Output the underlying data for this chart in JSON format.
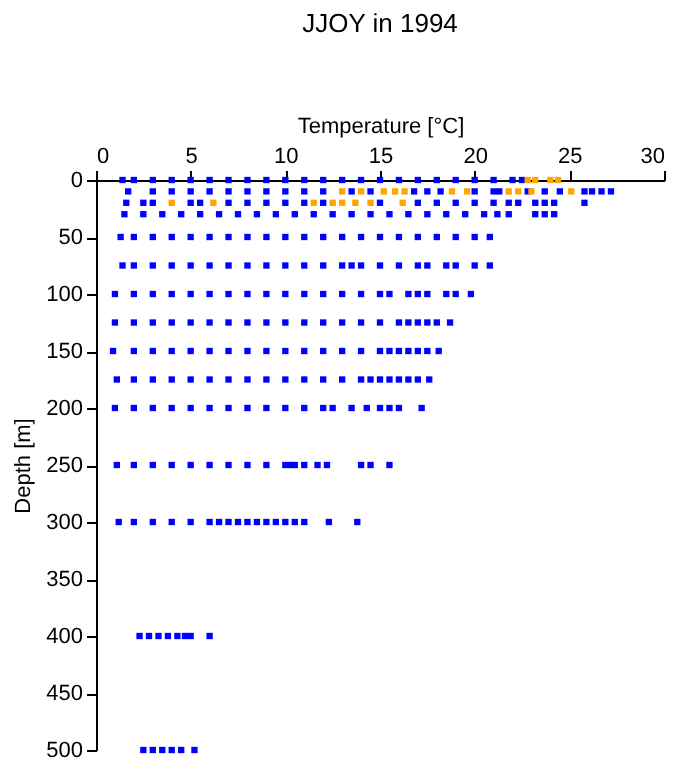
{
  "chart_data": {
    "type": "scatter",
    "title": "JJOY in 1994",
    "xlabel": "Temperature [°C]",
    "ylabel": "Depth [m]",
    "xlim": [
      0,
      30
    ],
    "xticks": [
      0,
      5,
      10,
      15,
      20,
      25,
      30
    ],
    "ylim": [
      500,
      0
    ],
    "yticks": [
      0,
      50,
      100,
      150,
      200,
      250,
      300,
      350,
      400,
      450,
      500
    ],
    "grid": false,
    "marker": "square",
    "series": [
      {
        "color": "#0000ff",
        "x": [
          1.4,
          2,
          3,
          4,
          5,
          6,
          7,
          8,
          9,
          10,
          11,
          12,
          13,
          14,
          15,
          16,
          17,
          18,
          19,
          20,
          21,
          22,
          22.5
        ],
        "values": [
          0,
          0,
          0,
          0,
          0,
          0,
          0,
          0,
          0,
          0,
          0,
          0,
          0,
          0,
          0,
          0,
          0,
          0,
          0,
          0,
          0,
          0,
          0
        ]
      },
      {
        "color": "#0000ff",
        "x": [
          1.7,
          3,
          4,
          5,
          6,
          7,
          8,
          9,
          10,
          11,
          12,
          13.5,
          14.5,
          16.8,
          17.5,
          18.2,
          20,
          21,
          21.3,
          22.8,
          23.7,
          24.5,
          25.8,
          26.2,
          26.7,
          27.2
        ],
        "values": [
          10,
          10,
          10,
          10,
          10,
          10,
          10,
          10,
          10,
          10,
          10,
          10,
          10,
          10,
          10,
          10,
          10,
          10,
          10,
          10,
          10,
          10,
          10,
          10,
          10,
          10
        ]
      },
      {
        "color": "#0000ff",
        "x": [
          1.6,
          2.5,
          3,
          5,
          5.5,
          7,
          8,
          9,
          10,
          11,
          12,
          15,
          17,
          18,
          19,
          20,
          21,
          21.8,
          22.3,
          23.2,
          23.7,
          24.2,
          25.8
        ],
        "values": [
          20,
          20,
          20,
          20,
          20,
          20,
          20,
          20,
          20,
          20,
          20,
          20,
          20,
          20,
          20,
          20,
          20,
          20,
          20,
          20,
          20,
          20,
          20
        ]
      },
      {
        "color": "#0000ff",
        "x": [
          1.5,
          2.5,
          3.5,
          4.5,
          5.5,
          6.5,
          7.5,
          8.5,
          9.5,
          10.5,
          11.5,
          12.5,
          13.5,
          14.5,
          15.5,
          16.5,
          17.5,
          18.5,
          19.5,
          20.5,
          21.2,
          21.8,
          23.2,
          23.7,
          24.2
        ],
        "values": [
          30,
          30,
          30,
          30,
          30,
          30,
          30,
          30,
          30,
          30,
          30,
          30,
          30,
          30,
          30,
          30,
          30,
          30,
          30,
          30,
          30,
          30,
          30,
          30,
          30
        ]
      },
      {
        "color": "#0000ff",
        "x": [
          1.3,
          2,
          3,
          4,
          5,
          6,
          7,
          8,
          9,
          10,
          11,
          12,
          13,
          14,
          15,
          16,
          17,
          18,
          19,
          20,
          20.8
        ],
        "values": [
          50,
          50,
          50,
          50,
          50,
          50,
          50,
          50,
          50,
          50,
          50,
          50,
          50,
          50,
          50,
          50,
          50,
          50,
          50,
          50,
          50
        ]
      },
      {
        "color": "#0000ff",
        "x": [
          1.4,
          2,
          3,
          4,
          5,
          6,
          7,
          8,
          9,
          10,
          11,
          12,
          13,
          13.5,
          14,
          15,
          16,
          17,
          17.5,
          18.5,
          19,
          20,
          20.8
        ],
        "values": [
          75,
          75,
          75,
          75,
          75,
          75,
          75,
          75,
          75,
          75,
          75,
          75,
          75,
          75,
          75,
          75,
          75,
          75,
          75,
          75,
          75,
          75,
          75
        ]
      },
      {
        "color": "#0000ff",
        "x": [
          1.0,
          2,
          3,
          4,
          5,
          6,
          7,
          8,
          9,
          10,
          11,
          12,
          13,
          14,
          15,
          15.5,
          16.5,
          17,
          17.5,
          18.5,
          19,
          19.8
        ],
        "values": [
          100,
          100,
          100,
          100,
          100,
          100,
          100,
          100,
          100,
          100,
          100,
          100,
          100,
          100,
          100,
          100,
          100,
          100,
          100,
          100,
          100,
          100
        ]
      },
      {
        "color": "#0000ff",
        "x": [
          1.0,
          2,
          3,
          4,
          5,
          6,
          7,
          8,
          9,
          10,
          11,
          12,
          13,
          14,
          15,
          16,
          16.5,
          17,
          17.5,
          18,
          18.7
        ],
        "values": [
          125,
          125,
          125,
          125,
          125,
          125,
          125,
          125,
          125,
          125,
          125,
          125,
          125,
          125,
          125,
          125,
          125,
          125,
          125,
          125,
          125
        ]
      },
      {
        "color": "#0000ff",
        "x": [
          0.9,
          2,
          3,
          4,
          5,
          6,
          7,
          8,
          9,
          10,
          11,
          12,
          13,
          14,
          15,
          15.5,
          16,
          16.5,
          17,
          17.5,
          18.1
        ],
        "values": [
          150,
          150,
          150,
          150,
          150,
          150,
          150,
          150,
          150,
          150,
          150,
          150,
          150,
          150,
          150,
          150,
          150,
          150,
          150,
          150,
          150
        ]
      },
      {
        "color": "#0000ff",
        "x": [
          1.1,
          2,
          3,
          4,
          5,
          6,
          7,
          8,
          9,
          10,
          11,
          12,
          13,
          14,
          14.5,
          15,
          15.5,
          16,
          16.5,
          17,
          17.6
        ],
        "values": [
          175,
          175,
          175,
          175,
          175,
          175,
          175,
          175,
          175,
          175,
          175,
          175,
          175,
          175,
          175,
          175,
          175,
          175,
          175,
          175,
          175
        ]
      },
      {
        "color": "#0000ff",
        "x": [
          1.0,
          2,
          3,
          4,
          5,
          6,
          7,
          8,
          9,
          10,
          11,
          12,
          12.5,
          13.5,
          14.3,
          15,
          15.5,
          16,
          17.2
        ],
        "values": [
          200,
          200,
          200,
          200,
          200,
          200,
          200,
          200,
          200,
          200,
          200,
          200,
          200,
          200,
          200,
          200,
          200,
          200,
          200
        ]
      },
      {
        "color": "#0000ff",
        "x": [
          1.1,
          2,
          3,
          4,
          5,
          6,
          7,
          8,
          9,
          10,
          10.3,
          10.5,
          11,
          11.7,
          12.2,
          14,
          14.5,
          15.5
        ],
        "values": [
          250,
          250,
          250,
          250,
          250,
          250,
          250,
          250,
          250,
          250,
          250,
          250,
          250,
          250,
          250,
          250,
          250,
          250
        ]
      },
      {
        "color": "#0000ff",
        "x": [
          1.2,
          2,
          3,
          4,
          5,
          6,
          6.5,
          7,
          7.5,
          8,
          8.5,
          9,
          9.5,
          10,
          10.5,
          11,
          12.3,
          13.8
        ],
        "values": [
          300,
          300,
          300,
          300,
          300,
          300,
          300,
          300,
          300,
          300,
          300,
          300,
          300,
          300,
          300,
          300,
          300,
          300
        ]
      },
      {
        "color": "#0000ff",
        "x": [
          2.3,
          2.8,
          3.3,
          3.8,
          4.3,
          4.7,
          5,
          6.0
        ],
        "values": [
          400,
          400,
          400,
          400,
          400,
          400,
          400,
          400
        ]
      },
      {
        "color": "#0000ff",
        "x": [
          2.5,
          3,
          3.5,
          4,
          4.5,
          5.2
        ],
        "values": [
          500,
          500,
          500,
          500,
          500,
          500
        ]
      },
      {
        "color": "#ffa500",
        "x": [
          22.8,
          23.2,
          24,
          24.4
        ],
        "values": [
          0,
          0,
          0,
          0
        ]
      },
      {
        "color": "#ffa500",
        "x": [
          13,
          14,
          15.2,
          15.8,
          16.3,
          18.8,
          19.6,
          21.8,
          22.3,
          23,
          25.1
        ],
        "values": [
          10,
          10,
          10,
          10,
          10,
          10,
          10,
          10,
          10,
          10,
          10
        ]
      },
      {
        "color": "#ffa500",
        "x": [
          4,
          6.2,
          11.5,
          12.5,
          13,
          13.7,
          14.5,
          16.2
        ],
        "values": [
          20,
          20,
          20,
          20,
          20,
          20,
          20,
          20
        ]
      }
    ]
  }
}
